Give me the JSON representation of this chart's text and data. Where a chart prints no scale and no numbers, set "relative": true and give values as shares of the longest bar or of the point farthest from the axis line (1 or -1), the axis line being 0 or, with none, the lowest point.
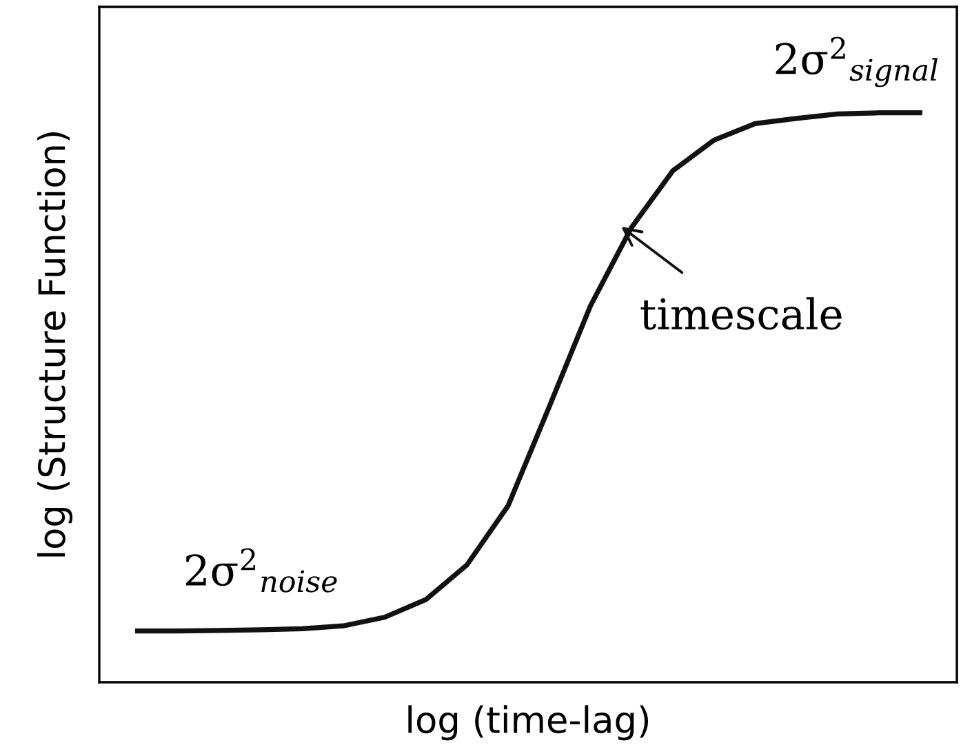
{
  "chart_data": {
    "type": "line",
    "relative": true,
    "xlabel": "log (time-lag)",
    "ylabel": "log (Structure Function)",
    "categories": [
      null,
      null,
      null,
      null,
      null,
      null,
      null,
      null,
      null,
      null,
      null,
      null,
      null,
      null,
      null,
      null,
      null,
      null,
      null,
      null
    ],
    "series": [
      {
        "color": "#111111",
        "values": [
          0.09,
          0.09,
          0.091,
          0.092,
          0.094,
          0.099,
          0.114,
          0.145,
          0.206,
          0.31,
          0.484,
          0.661,
          0.799,
          0.898,
          0.952,
          0.981,
          0.99,
          0.998,
          1.0,
          1.0
        ]
      }
    ],
    "annotations": [
      "2σ$^{2}$$_{noise}$",
      "2σ$^{2}$$_{signal}$",
      "timescale"
    ],
    "legend": false,
    "marker": "none",
    "line_style": "solid"
  }
}
